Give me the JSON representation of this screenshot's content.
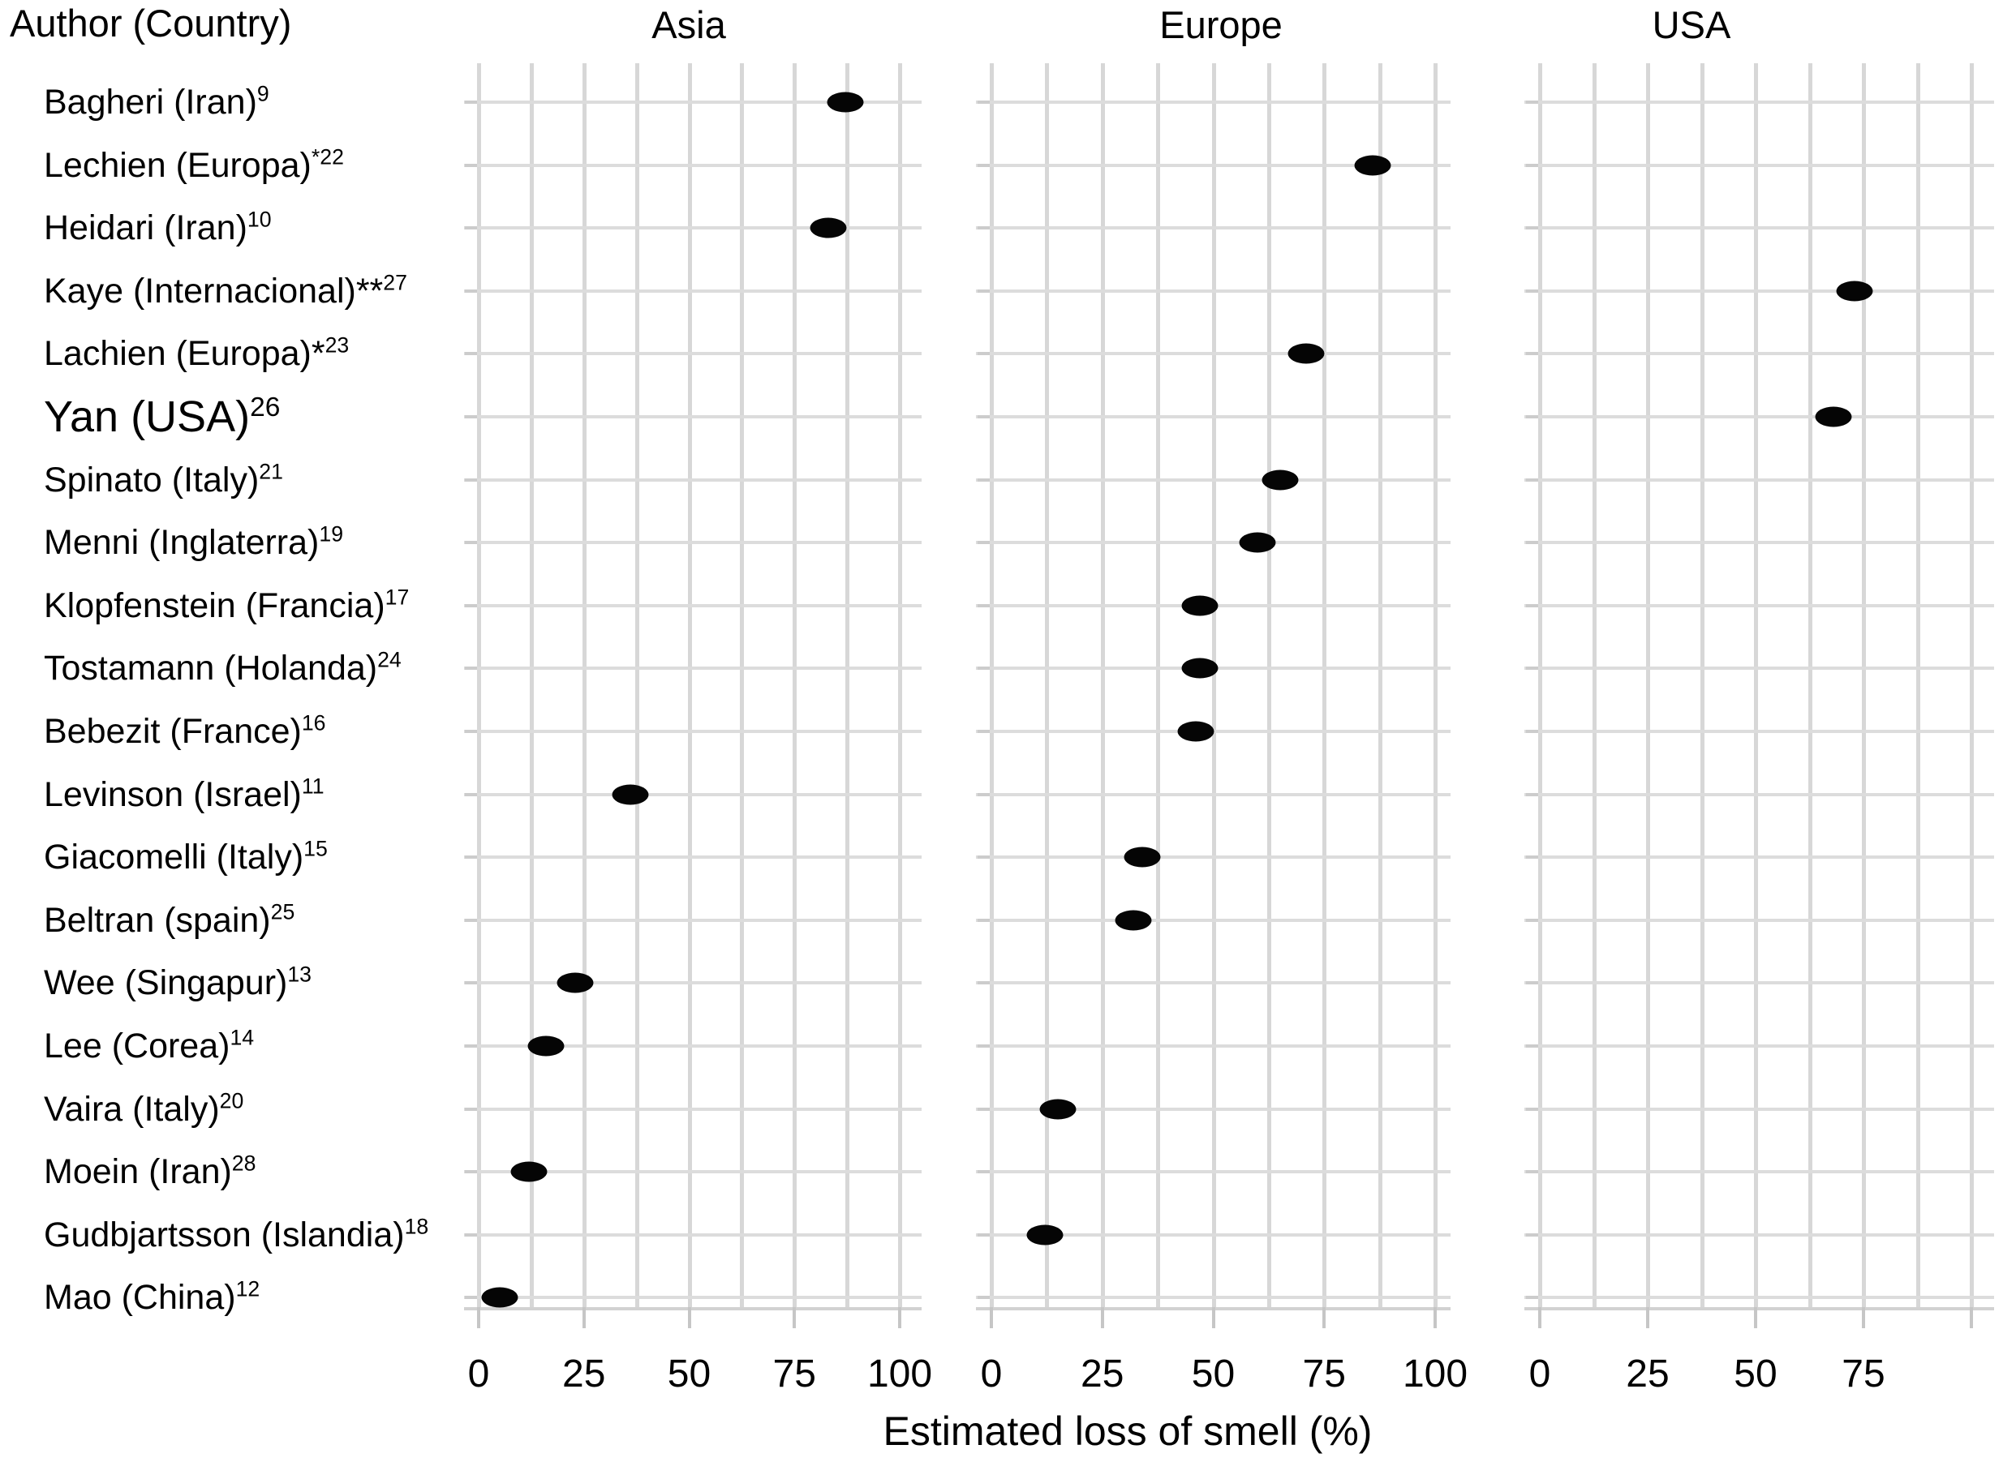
{
  "chart_data": {
    "type": "scatter",
    "subtype": "dot-plot-faceted",
    "title": "",
    "xlabel": "Estimated loss of smell (%)",
    "ylabel": "Author (Country)",
    "xlim": [
      0,
      100
    ],
    "gridline_step": 12.5,
    "grid": "on",
    "legend": "none",
    "colors": {
      "dot": "#050505",
      "gridline": "#d9d9d9",
      "text": "#000000"
    },
    "panels": [
      {
        "id": "Asia",
        "label": "Asia",
        "ticks": [
          {
            "v": 0,
            "label": "0"
          },
          {
            "v": 25,
            "label": "25"
          },
          {
            "v": 50,
            "label": "50"
          },
          {
            "v": 75,
            "label": "75"
          },
          {
            "v": 100,
            "label": "100"
          }
        ]
      },
      {
        "id": "Europe",
        "label": "Europe",
        "ticks": [
          {
            "v": 0,
            "label": "0"
          },
          {
            "v": 25,
            "label": "25"
          },
          {
            "v": 50,
            "label": "50"
          },
          {
            "v": 75,
            "label": "75"
          },
          {
            "v": 100,
            "label": "100"
          }
        ]
      },
      {
        "id": "USA",
        "label": "USA",
        "ticks": [
          {
            "v": 0,
            "label": "0"
          },
          {
            "v": 25,
            "label": "25"
          },
          {
            "v": 50,
            "label": "50"
          },
          {
            "v": 75,
            "label": "75"
          },
          {
            "v": 100,
            "label": ""
          }
        ]
      }
    ],
    "rows": [
      {
        "author": "Bagheri (Iran)",
        "prefix": "",
        "sup": "9",
        "panel": "Asia",
        "value": 87,
        "large": false
      },
      {
        "author": "Lechien (Europa)",
        "prefix": "",
        "sup": "*22",
        "panel": "Europe",
        "value": 86,
        "large": false
      },
      {
        "author": "Heidari (Iran)",
        "prefix": "",
        "sup": "10",
        "panel": "Asia",
        "value": 83,
        "large": false
      },
      {
        "author": "Kaye (Internacional)",
        "prefix": "**",
        "sup": "27",
        "panel": "USA",
        "value": 73,
        "large": false
      },
      {
        "author": "Lachien (Europa)",
        "prefix": "*",
        "sup": "23",
        "panel": "Europe",
        "value": 71,
        "large": false
      },
      {
        "author": "Yan (USA)",
        "prefix": "",
        "sup": "26",
        "panel": "USA",
        "value": 68,
        "large": true
      },
      {
        "author": "Spinato (Italy)",
        "prefix": "",
        "sup": "21",
        "panel": "Europe",
        "value": 65,
        "large": false
      },
      {
        "author": "Menni (Inglaterra)",
        "prefix": "",
        "sup": "19",
        "panel": "Europe",
        "value": 60,
        "large": false
      },
      {
        "author": "Klopfenstein (Francia)",
        "prefix": "",
        "sup": "17",
        "panel": "Europe",
        "value": 47,
        "large": false
      },
      {
        "author": "Tostamann (Holanda)",
        "prefix": "",
        "sup": "24",
        "panel": "Europe",
        "value": 47,
        "large": false
      },
      {
        "author": "Bebezit (France)",
        "prefix": "",
        "sup": "16",
        "panel": "Europe",
        "value": 46,
        "large": false
      },
      {
        "author": "Levinson (Israel)",
        "prefix": "",
        "sup": "11",
        "panel": "Asia",
        "value": 36,
        "large": false
      },
      {
        "author": "Giacomelli (Italy)",
        "prefix": "",
        "sup": "15",
        "panel": "Europe",
        "value": 34,
        "large": false
      },
      {
        "author": "Beltran (spain)",
        "prefix": "",
        "sup": "25",
        "panel": "Europe",
        "value": 32,
        "large": false
      },
      {
        "author": "Wee (Singapur)",
        "prefix": "",
        "sup": "13",
        "panel": "Asia",
        "value": 23,
        "large": false
      },
      {
        "author": "Lee (Corea)",
        "prefix": "",
        "sup": "14",
        "panel": "Asia",
        "value": 16,
        "large": false
      },
      {
        "author": "Vaira (Italy)",
        "prefix": "",
        "sup": "20",
        "panel": "Europe",
        "value": 15,
        "large": false
      },
      {
        "author": "Moein (Iran)",
        "prefix": "",
        "sup": "28",
        "panel": "Asia",
        "value": 12,
        "large": false
      },
      {
        "author": "Gudbjartsson (Islandia)",
        "prefix": "",
        "sup": "18",
        "panel": "Europe",
        "value": 12,
        "large": false
      },
      {
        "author": "Mao (China)",
        "prefix": "",
        "sup": "12",
        "panel": "Asia",
        "value": 5,
        "large": false
      }
    ]
  }
}
